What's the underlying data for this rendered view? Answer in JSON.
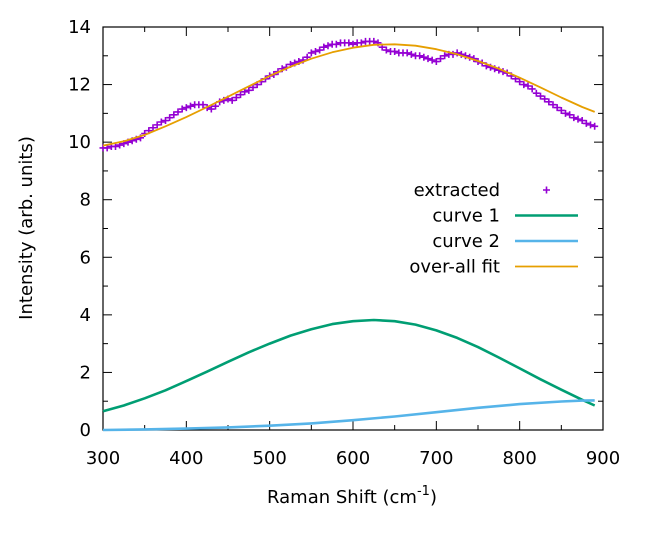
{
  "chart_data": {
    "type": "line",
    "title": "",
    "xlabel": "Raman Shift (cm",
    "xlabel_sup": "-1",
    "xlabel_end": ")",
    "ylabel": "Intensity (arb. units)",
    "xlim": [
      300,
      900
    ],
    "ylim": [
      0,
      14
    ],
    "xticks": [
      "300",
      "400",
      "500",
      "600",
      "700",
      "800",
      "900"
    ],
    "yticks": [
      "0",
      "2",
      "4",
      "6",
      "8",
      "10",
      "12",
      "14"
    ],
    "grid": false,
    "legend_position": "right-middle",
    "series": [
      {
        "name": "extracted",
        "style": "points",
        "color": "#9400d3",
        "x": [
          300,
          305,
          310,
          315,
          320,
          325,
          330,
          335,
          340,
          345,
          350,
          355,
          360,
          365,
          370,
          375,
          380,
          385,
          390,
          395,
          400,
          405,
          410,
          415,
          420,
          425,
          430,
          435,
          440,
          445,
          450,
          455,
          460,
          465,
          470,
          475,
          480,
          485,
          490,
          495,
          500,
          505,
          510,
          515,
          520,
          525,
          530,
          535,
          540,
          545,
          550,
          555,
          560,
          565,
          570,
          575,
          580,
          585,
          590,
          595,
          600,
          605,
          610,
          615,
          620,
          625,
          630,
          635,
          640,
          645,
          650,
          655,
          660,
          665,
          670,
          675,
          680,
          685,
          690,
          695,
          700,
          705,
          710,
          715,
          720,
          725,
          730,
          735,
          740,
          745,
          750,
          755,
          760,
          765,
          770,
          775,
          780,
          785,
          790,
          795,
          800,
          805,
          810,
          815,
          820,
          825,
          830,
          835,
          840,
          845,
          850,
          855,
          860,
          865,
          870,
          875,
          880,
          885,
          890
        ],
        "y": [
          9.8,
          9.8,
          9.85,
          9.85,
          9.9,
          9.95,
          10.0,
          10.05,
          10.1,
          10.15,
          10.3,
          10.4,
          10.5,
          10.6,
          10.7,
          10.75,
          10.85,
          10.95,
          11.05,
          11.15,
          11.2,
          11.25,
          11.3,
          11.3,
          11.3,
          11.2,
          11.15,
          11.25,
          11.4,
          11.45,
          11.5,
          11.45,
          11.55,
          11.65,
          11.75,
          11.8,
          11.9,
          12.0,
          12.1,
          12.2,
          12.3,
          12.35,
          12.45,
          12.55,
          12.6,
          12.7,
          12.75,
          12.8,
          12.85,
          12.95,
          13.1,
          13.15,
          13.2,
          13.3,
          13.35,
          13.4,
          13.4,
          13.45,
          13.45,
          13.45,
          13.4,
          13.45,
          13.45,
          13.5,
          13.5,
          13.5,
          13.45,
          13.3,
          13.2,
          13.15,
          13.15,
          13.1,
          13.1,
          13.1,
          13.05,
          13.0,
          13.0,
          12.95,
          12.9,
          12.85,
          12.8,
          12.9,
          13.0,
          13.05,
          13.05,
          13.1,
          13.05,
          13.0,
          12.95,
          12.9,
          12.8,
          12.75,
          12.65,
          12.6,
          12.55,
          12.5,
          12.45,
          12.4,
          12.3,
          12.2,
          12.1,
          12.0,
          11.95,
          11.85,
          11.7,
          11.6,
          11.5,
          11.4,
          11.3,
          11.2,
          11.1,
          11.0,
          10.95,
          10.85,
          10.8,
          10.75,
          10.65,
          10.6,
          10.55
        ]
      },
      {
        "name": "curve 1",
        "style": "line",
        "color": "#009e73",
        "x": [
          300,
          325,
          350,
          375,
          400,
          425,
          450,
          475,
          500,
          525,
          550,
          575,
          600,
          625,
          650,
          675,
          700,
          725,
          750,
          775,
          800,
          825,
          850,
          875,
          890
        ],
        "y": [
          0.65,
          0.85,
          1.1,
          1.38,
          1.7,
          2.03,
          2.37,
          2.7,
          3.0,
          3.28,
          3.5,
          3.68,
          3.78,
          3.82,
          3.78,
          3.66,
          3.46,
          3.2,
          2.88,
          2.52,
          2.14,
          1.76,
          1.4,
          1.05,
          0.85
        ]
      },
      {
        "name": "curve 2",
        "style": "line",
        "color": "#56b4e9",
        "x": [
          300,
          350,
          400,
          450,
          500,
          550,
          600,
          650,
          700,
          750,
          800,
          850,
          875,
          890
        ],
        "y": [
          0.0,
          0.02,
          0.05,
          0.09,
          0.15,
          0.23,
          0.34,
          0.47,
          0.62,
          0.77,
          0.9,
          0.99,
          1.02,
          1.03
        ]
      },
      {
        "name": "over-all fit",
        "style": "line",
        "color": "#e69f00",
        "x": [
          300,
          325,
          350,
          375,
          400,
          425,
          450,
          475,
          500,
          525,
          550,
          575,
          600,
          625,
          650,
          675,
          700,
          725,
          750,
          775,
          800,
          825,
          850,
          875,
          890
        ],
        "y": [
          9.88,
          10.03,
          10.25,
          10.55,
          10.87,
          11.22,
          11.58,
          11.94,
          12.3,
          12.62,
          12.9,
          13.12,
          13.28,
          13.38,
          13.4,
          13.35,
          13.23,
          13.05,
          12.82,
          12.55,
          12.24,
          11.9,
          11.55,
          11.22,
          11.05
        ]
      }
    ]
  }
}
